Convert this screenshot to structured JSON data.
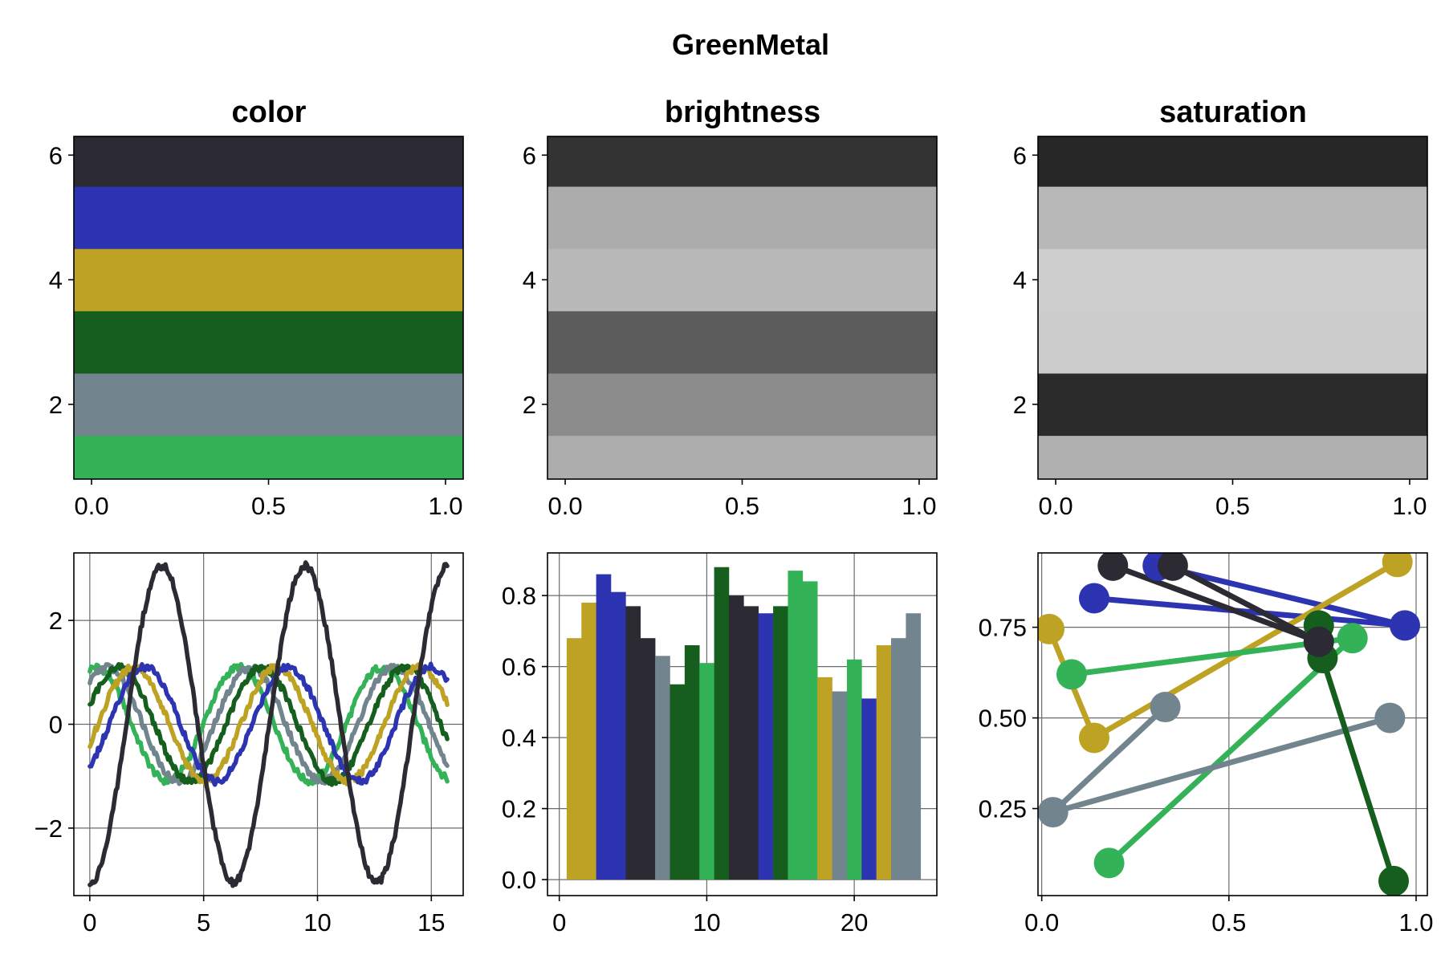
{
  "figure": {
    "title": "GreenMetal"
  },
  "palette": {
    "name": "GreenMetal",
    "colors": [
      "#34b257",
      "#72848d",
      "#155e1e",
      "#bea224",
      "#2d34b1",
      "#2c2a33"
    ]
  },
  "chart_data": [
    {
      "id": "color",
      "type": "bar",
      "orientation": "horizontal-bands",
      "title": "color",
      "xlim": [
        -0.05,
        1.05
      ],
      "ylim": [
        0.8,
        6.3
      ],
      "xticks": [
        0.0,
        0.5,
        1.0
      ],
      "xtick_labels": [
        "0.0",
        "0.5",
        "1.0"
      ],
      "yticks": [
        2,
        4,
        6
      ],
      "ytick_labels": [
        "2",
        "4",
        "6"
      ],
      "grid": false,
      "bands": [
        {
          "y": 1,
          "color": "#34b257"
        },
        {
          "y": 2,
          "color": "#72848d"
        },
        {
          "y": 3,
          "color": "#155e1e"
        },
        {
          "y": 4,
          "color": "#bea224"
        },
        {
          "y": 5,
          "color": "#2d34b1"
        },
        {
          "y": 6,
          "color": "#2c2a33"
        }
      ]
    },
    {
      "id": "brightness",
      "type": "bar",
      "orientation": "horizontal-bands",
      "title": "brightness",
      "xlim": [
        -0.05,
        1.05
      ],
      "ylim": [
        0.8,
        6.3
      ],
      "xticks": [
        0.0,
        0.5,
        1.0
      ],
      "xtick_labels": [
        "0.0",
        "0.5",
        "1.0"
      ],
      "yticks": [
        2,
        4,
        6
      ],
      "ytick_labels": [
        "2",
        "4",
        "6"
      ],
      "grid": false,
      "bands": [
        {
          "y": 1,
          "color": "#adadad"
        },
        {
          "y": 2,
          "color": "#8c8c8c"
        },
        {
          "y": 3,
          "color": "#5c5c5c"
        },
        {
          "y": 4,
          "color": "#b9b9b9"
        },
        {
          "y": 5,
          "color": "#acacac"
        },
        {
          "y": 6,
          "color": "#333333"
        }
      ]
    },
    {
      "id": "saturation",
      "type": "bar",
      "orientation": "horizontal-bands",
      "title": "saturation",
      "xlim": [
        -0.05,
        1.05
      ],
      "ylim": [
        0.8,
        6.3
      ],
      "xticks": [
        0.0,
        0.5,
        1.0
      ],
      "xtick_labels": [
        "0.0",
        "0.5",
        "1.0"
      ],
      "yticks": [
        2,
        4,
        6
      ],
      "ytick_labels": [
        "2",
        "4",
        "6"
      ],
      "grid": false,
      "bands": [
        {
          "y": 1,
          "color": "#b0b0b0"
        },
        {
          "y": 2,
          "color": "#2b2b2b"
        },
        {
          "y": 3,
          "color": "#cccccc"
        },
        {
          "y": 4,
          "color": "#cecece"
        },
        {
          "y": 5,
          "color": "#b8b8b8"
        },
        {
          "y": 6,
          "color": "#262626"
        }
      ]
    },
    {
      "id": "lines",
      "type": "line",
      "title": "",
      "xlim": [
        -0.7,
        16.4
      ],
      "ylim": [
        -3.3,
        3.3
      ],
      "xticks": [
        0,
        5,
        10,
        15
      ],
      "xtick_labels": [
        "0",
        "5",
        "10",
        "15"
      ],
      "yticks": [
        -2,
        0,
        2
      ],
      "ytick_labels": [
        "−2",
        "0",
        "2"
      ],
      "grid": true,
      "x_range": [
        0,
        15.7
      ],
      "series": [
        {
          "color": "#34b257",
          "amplitude": 1.1,
          "phase": 1.3,
          "frequency": 1.0
        },
        {
          "color": "#72848d",
          "amplitude": 1.1,
          "phase": 0.8,
          "frequency": 1.0
        },
        {
          "color": "#155e1e",
          "amplitude": 1.1,
          "phase": 0.3,
          "frequency": 1.0
        },
        {
          "color": "#bea224",
          "amplitude": 1.1,
          "phase": -0.35,
          "frequency": 1.0
        },
        {
          "color": "#2d34b1",
          "amplitude": 1.1,
          "phase": -0.85,
          "frequency": 1.0
        },
        {
          "color": "#2c2a33",
          "amplitude": 3.05,
          "phase": -1.6,
          "frequency": 1.0
        }
      ]
    },
    {
      "id": "bars",
      "type": "bar",
      "title": "",
      "xlim": [
        -0.8,
        25.6
      ],
      "ylim": [
        -0.045,
        0.92
      ],
      "xticks": [
        0,
        10,
        20
      ],
      "xtick_labels": [
        "0",
        "10",
        "20"
      ],
      "yticks": [
        0.0,
        0.2,
        0.4,
        0.6,
        0.8
      ],
      "ytick_labels": [
        "0.0",
        "0.2",
        "0.4",
        "0.6",
        "0.8"
      ],
      "grid": true,
      "bar_width": 1.0,
      "x": [
        1,
        2,
        3,
        4,
        5,
        6,
        7,
        8,
        9,
        10,
        11,
        12,
        13,
        14,
        15,
        16,
        17,
        18,
        19,
        20,
        21,
        22,
        23,
        24
      ],
      "values": [
        0.68,
        0.78,
        0.86,
        0.81,
        0.77,
        0.68,
        0.63,
        0.55,
        0.66,
        0.61,
        0.88,
        0.8,
        0.77,
        0.75,
        0.77,
        0.87,
        0.84,
        0.57,
        0.53,
        0.62,
        0.51,
        0.66,
        0.68,
        0.75
      ],
      "colors": [
        "#bea224",
        "#bea224",
        "#2d34b1",
        "#2d34b1",
        "#2c2a33",
        "#2c2a33",
        "#72848d",
        "#155e1e",
        "#155e1e",
        "#34b257",
        "#155e1e",
        "#2c2a33",
        "#2c2a33",
        "#2d34b1",
        "#155e1e",
        "#34b257",
        "#34b257",
        "#bea224",
        "#72848d",
        "#34b257",
        "#2d34b1",
        "#bea224",
        "#72848d",
        "#72848d"
      ]
    },
    {
      "id": "scatter",
      "type": "scatter",
      "title": "",
      "xlim": [
        -0.01,
        1.03
      ],
      "ylim": [
        0.01,
        0.955
      ],
      "xticks": [
        0.0,
        0.5,
        1.0
      ],
      "xtick_labels": [
        "0.0",
        "0.5",
        "1.0"
      ],
      "yticks": [
        0.25,
        0.5,
        0.75
      ],
      "ytick_labels": [
        "0.25",
        "0.50",
        "0.75"
      ],
      "grid": true,
      "series": [
        {
          "color": "#2d34b1",
          "points": [
            [
              0.14,
              0.83
            ],
            [
              0.97,
              0.755
            ],
            [
              0.31,
              0.92
            ]
          ]
        },
        {
          "color": "#bea224",
          "points": [
            [
              0.02,
              0.745
            ],
            [
              0.14,
              0.445
            ],
            [
              0.95,
              0.93
            ]
          ]
        },
        {
          "color": "#34b257",
          "points": [
            [
              0.08,
              0.62
            ],
            [
              0.83,
              0.72
            ],
            [
              0.18,
              0.1
            ]
          ]
        },
        {
          "color": "#72848d",
          "points": [
            [
              0.33,
              0.53
            ],
            [
              0.03,
              0.24
            ],
            [
              0.93,
              0.5
            ]
          ]
        },
        {
          "color": "#155e1e",
          "points": [
            [
              0.74,
              0.755
            ],
            [
              0.75,
              0.665
            ],
            [
              0.94,
              0.05
            ]
          ]
        },
        {
          "color": "#2c2a33",
          "points": [
            [
              0.19,
              0.92
            ],
            [
              0.74,
              0.71
            ],
            [
              0.35,
              0.92
            ]
          ]
        }
      ]
    }
  ]
}
